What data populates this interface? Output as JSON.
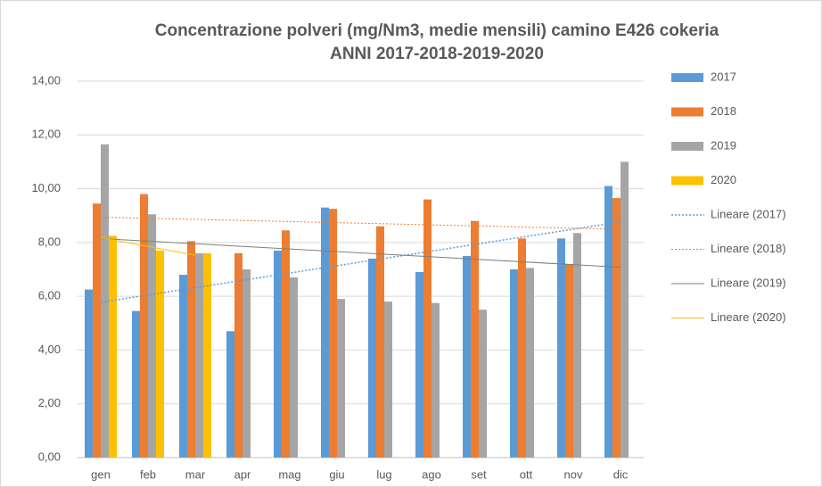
{
  "chart_data": {
    "type": "bar",
    "title": "Concentrazione polveri (mg/Nm3, medie mensili) camino E426 cokeria",
    "subtitle": "ANNI 2017-2018-2019-2020",
    "categories": [
      "gen",
      "feb",
      "mar",
      "apr",
      "mag",
      "giu",
      "lug",
      "ago",
      "set",
      "ott",
      "nov",
      "dic"
    ],
    "series": [
      {
        "name": "2017",
        "color": "#5b9bd5",
        "values": [
          6.25,
          5.45,
          6.8,
          4.7,
          7.7,
          9.3,
          7.4,
          6.9,
          7.5,
          7.0,
          8.15,
          10.1
        ]
      },
      {
        "name": "2018",
        "color": "#ed7d31",
        "values": [
          9.45,
          9.8,
          8.05,
          7.6,
          8.45,
          9.25,
          8.6,
          9.6,
          8.8,
          8.15,
          7.2,
          9.65
        ]
      },
      {
        "name": "2019",
        "color": "#a5a5a5",
        "values": [
          11.65,
          9.05,
          7.6,
          7.0,
          6.7,
          5.9,
          5.8,
          5.75,
          5.5,
          7.05,
          8.35,
          11.0
        ]
      },
      {
        "name": "2020",
        "color": "#ffc000",
        "values": [
          8.25,
          7.7,
          7.6,
          null,
          null,
          null,
          null,
          null,
          null,
          null,
          null,
          null
        ]
      }
    ],
    "trendlines": [
      {
        "name": "Lineare (2017)",
        "color": "#5b9bd5"
      },
      {
        "name": "Lineare (2018)",
        "color": "#ed7d31"
      },
      {
        "name": "Lineare (2019)",
        "color": "#7f7f7f"
      },
      {
        "name": "Lineare (2020)",
        "color": "#ffc000"
      }
    ],
    "ylim": [
      0,
      14
    ],
    "yticks": [
      {
        "value": 0,
        "label": "0,00"
      },
      {
        "value": 2,
        "label": "2,00"
      },
      {
        "value": 4,
        "label": "4,00"
      },
      {
        "value": 6,
        "label": "6,00"
      },
      {
        "value": 8,
        "label": "8,00"
      },
      {
        "value": 10,
        "label": "10,00"
      },
      {
        "value": 12,
        "label": "12,00"
      },
      {
        "value": 14,
        "label": "14,00"
      }
    ],
    "grid": true,
    "legend": "right"
  }
}
